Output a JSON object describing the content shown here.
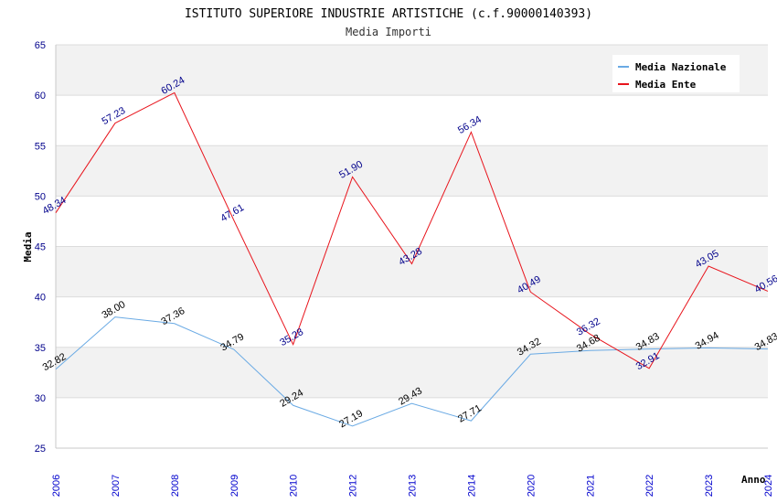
{
  "chart_data": {
    "type": "line",
    "title": "ISTITUTO SUPERIORE INDUSTRIE ARTISTICHE (c.f.90000140393)",
    "subtitle": "Media Importi",
    "xlabel": "Anno",
    "ylabel": "Media",
    "ylim": [
      25,
      65
    ],
    "yticks": [
      25,
      30,
      35,
      40,
      45,
      50,
      55,
      60,
      65
    ],
    "grid": true,
    "legend_position": "top-right",
    "categories": [
      "2006",
      "2007",
      "2008",
      "2009",
      "2010",
      "2012",
      "2013",
      "2014",
      "2020",
      "2021",
      "2022",
      "2023",
      "2024"
    ],
    "series": [
      {
        "name": "Media Nazionale",
        "color": "#6aaae4",
        "values": [
          32.82,
          38.0,
          37.36,
          34.79,
          29.24,
          27.19,
          29.43,
          27.71,
          34.32,
          34.68,
          34.83,
          34.94,
          34.83
        ],
        "labels": [
          "32.82",
          "38.00",
          "37.36",
          "34.79",
          "29.24",
          "27.19",
          "29.43",
          "27.71",
          "34.32",
          "34.68",
          "34.83",
          "34.94",
          "34.83"
        ]
      },
      {
        "name": "Media Ente",
        "color": "#e8141c",
        "values": [
          48.34,
          57.23,
          60.24,
          47.61,
          35.28,
          51.9,
          43.28,
          56.34,
          40.49,
          36.32,
          32.91,
          43.05,
          40.56
        ],
        "labels": [
          "48.34",
          "57.23",
          "60.24",
          "47.61",
          "35.28",
          "51.90",
          "43.28",
          "56.34",
          "40.49",
          "36.32",
          "32.91",
          "43.05",
          "40.56"
        ]
      }
    ]
  }
}
